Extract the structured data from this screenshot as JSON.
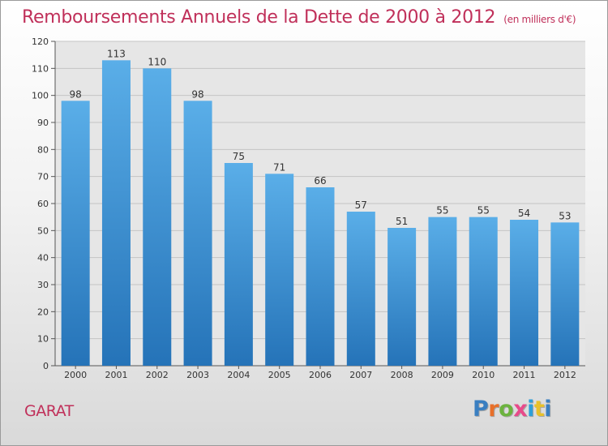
{
  "title": "Remboursements Annuels de la Dette de 2000 à 2012",
  "unit": "(en milliers d'€)",
  "commune": "GARAT",
  "logo": {
    "text": "Proxiti",
    "colors": [
      "#3a7fc1",
      "#e8702a",
      "#6cb33f",
      "#e84a8a",
      "#2e9fd8",
      "#e8c12a",
      "#3a7fc1"
    ]
  },
  "colors": {
    "bar": "#2f7fc4",
    "bar_light": "#5aaee8",
    "title": "#c0305a"
  },
  "chart_data": {
    "type": "bar",
    "categories": [
      "2000",
      "2001",
      "2002",
      "2003",
      "2004",
      "2005",
      "2006",
      "2007",
      "2008",
      "2009",
      "2010",
      "2011",
      "2012"
    ],
    "values": [
      98,
      113,
      110,
      98,
      75,
      71,
      66,
      57,
      51,
      55,
      55,
      54,
      53
    ],
    "ylim": [
      0,
      120
    ],
    "yticks": [
      0,
      10,
      20,
      30,
      40,
      50,
      60,
      70,
      80,
      90,
      100,
      110,
      120
    ],
    "grid": true
  }
}
